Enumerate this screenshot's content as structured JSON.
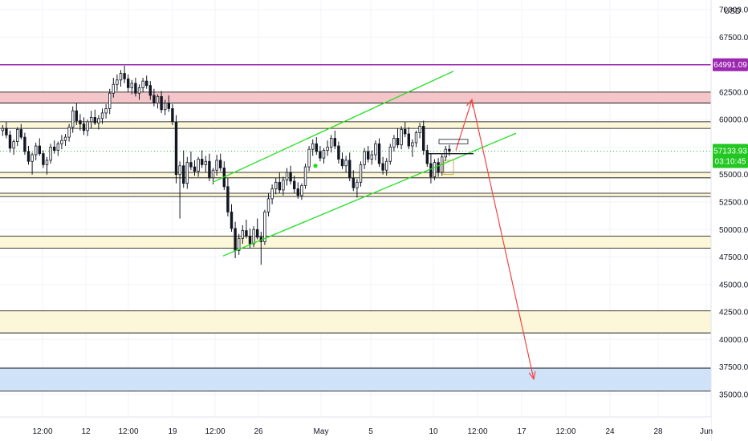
{
  "chart_data": {
    "type": "candlestick",
    "currency_label": "USD",
    "y_ticks": [
      35000,
      37500,
      40000,
      42500,
      45000,
      47500,
      50000,
      52500,
      55000,
      57500,
      60000,
      62500,
      65000,
      67500,
      70000
    ],
    "y_tick_labels": [
      "35000.00",
      "37500.00",
      "40000.00",
      "42500.00",
      "45000.00",
      "47500.00",
      "50000.00",
      "52500.00",
      "55000.00",
      "57500.00",
      "60000.00",
      "62500.00",
      "65000.00",
      "67500.00",
      "70000.00"
    ],
    "ylim": [
      33500,
      71000
    ],
    "x_tick_labels": [
      {
        "label": "12:00",
        "pos": 53
      },
      {
        "label": "12",
        "pos": 107
      },
      {
        "label": "12:00",
        "pos": 160
      },
      {
        "label": "19",
        "pos": 215
      },
      {
        "label": "12:00",
        "pos": 268
      },
      {
        "label": "26",
        "pos": 322
      },
      {
        "label": "May",
        "pos": 400
      },
      {
        "label": "5",
        "pos": 462
      },
      {
        "label": "10",
        "pos": 540
      },
      {
        "label": "12:00",
        "pos": 595
      },
      {
        "label": "17",
        "pos": 650
      },
      {
        "label": "12:00",
        "pos": 705
      },
      {
        "label": "24",
        "pos": 760
      },
      {
        "label": "28",
        "pos": 820
      },
      {
        "label": "Jun",
        "pos": 880
      }
    ],
    "resistance_line": {
      "value": 64991.09,
      "label": "64991.09",
      "color": "#9c27b0"
    },
    "current_price": {
      "value": 57133.93,
      "label": "57133.93",
      "countdown": "03:10:45",
      "color": "#22c722"
    },
    "zones": [
      {
        "from": 61500,
        "to": 62500,
        "fill": "#f5c6c9",
        "border": "#000000"
      },
      {
        "from": 59200,
        "to": 59800,
        "fill": "#fbf7d8",
        "border": "#000000"
      },
      {
        "from": 54700,
        "to": 55200,
        "fill": "#fbf7d8",
        "border": "#000000"
      },
      {
        "from": 53000,
        "to": 53300,
        "fill": "#fbf7d8",
        "border": "#000000"
      },
      {
        "from": 48300,
        "to": 49400,
        "fill": "#fbf7d8",
        "border": "#000000"
      },
      {
        "from": 40600,
        "to": 42600,
        "fill": "#fbf7d8",
        "border": "#000000"
      },
      {
        "from": 35300,
        "to": 37400,
        "fill": "#cfe2f7",
        "border": "#000000"
      }
    ],
    "channel": {
      "color": "#22dd22",
      "upper": [
        [
          265,
          54300
        ],
        [
          565,
          64400
        ]
      ],
      "lower": [
        [
          278,
          47600
        ],
        [
          643,
          58750
        ]
      ]
    },
    "projection": {
      "color": "#f04545",
      "points": [
        [
          568,
          57200
        ],
        [
          588,
          61800
        ],
        [
          665,
          36400
        ]
      ]
    },
    "candles": [
      [
        59000,
        59500,
        58500,
        59200
      ],
      [
        59200,
        59800,
        58300,
        58600
      ],
      [
        58600,
        59000,
        57000,
        57400
      ],
      [
        57400,
        58200,
        56800,
        58000
      ],
      [
        58000,
        59300,
        57600,
        59100
      ],
      [
        59100,
        59600,
        58200,
        58400
      ],
      [
        58400,
        58800,
        56800,
        57100
      ],
      [
        57100,
        57600,
        55900,
        56200
      ],
      [
        56200,
        57000,
        55000,
        56800
      ],
      [
        56800,
        57900,
        56300,
        57600
      ],
      [
        57600,
        58300,
        56700,
        56900
      ],
      [
        56900,
        57200,
        55600,
        55900
      ],
      [
        55900,
        56600,
        55000,
        56300
      ],
      [
        56300,
        57800,
        56000,
        57500
      ],
      [
        57500,
        58100,
        56900,
        57200
      ],
      [
        57200,
        58000,
        56700,
        57800
      ],
      [
        57800,
        58600,
        57300,
        58100
      ],
      [
        58100,
        58700,
        57600,
        58400
      ],
      [
        58400,
        59600,
        58000,
        59300
      ],
      [
        59300,
        61200,
        58800,
        60800
      ],
      [
        60800,
        61500,
        59500,
        59900
      ],
      [
        59900,
        60500,
        59000,
        59600
      ],
      [
        59600,
        60200,
        58600,
        59000
      ],
      [
        59000,
        60000,
        58500,
        59800
      ],
      [
        59800,
        60800,
        59200,
        60200
      ],
      [
        60200,
        60900,
        59500,
        59700
      ],
      [
        59700,
        60400,
        59100,
        60100
      ],
      [
        60100,
        61000,
        59600,
        60600
      ],
      [
        60600,
        61400,
        60100,
        61000
      ],
      [
        61000,
        62800,
        60500,
        62400
      ],
      [
        62400,
        63800,
        62000,
        63200
      ],
      [
        63200,
        64100,
        62600,
        63600
      ],
      [
        63600,
        64500,
        63000,
        64200
      ],
      [
        64200,
        64900,
        63300,
        63700
      ],
      [
        63700,
        64100,
        62500,
        62900
      ],
      [
        62900,
        63600,
        62300,
        63300
      ],
      [
        63300,
        63800,
        62100,
        62400
      ],
      [
        62400,
        63200,
        61800,
        62900
      ],
      [
        62900,
        63800,
        62500,
        63500
      ],
      [
        63500,
        64000,
        62800,
        63100
      ],
      [
        63100,
        63500,
        61800,
        62200
      ],
      [
        62200,
        62800,
        61200,
        61500
      ],
      [
        61500,
        62300,
        61000,
        62100
      ],
      [
        62100,
        62600,
        60600,
        60900
      ],
      [
        60900,
        61800,
        60400,
        61500
      ],
      [
        61500,
        62200,
        60700,
        61000
      ],
      [
        61000,
        61400,
        59500,
        59800
      ],
      [
        59800,
        60400,
        54200,
        55000
      ],
      [
        55000,
        56200,
        51000,
        55800
      ],
      [
        55800,
        57200,
        53800,
        54200
      ],
      [
        54200,
        56600,
        53700,
        56100
      ],
      [
        56100,
        57100,
        55400,
        55700
      ],
      [
        55700,
        56300,
        54900,
        55300
      ],
      [
        55300,
        56600,
        54800,
        56400
      ],
      [
        56400,
        57200,
        55600,
        55900
      ],
      [
        55900,
        56700,
        55200,
        56200
      ],
      [
        56200,
        56900,
        54400,
        54700
      ],
      [
        54700,
        55600,
        54100,
        55400
      ],
      [
        55400,
        56800,
        54900,
        56300
      ],
      [
        56300,
        56900,
        55300,
        55600
      ],
      [
        55600,
        56200,
        53600,
        53900
      ],
      [
        53900,
        54700,
        51200,
        51600
      ],
      [
        51600,
        52300,
        49800,
        50100
      ],
      [
        50100,
        50700,
        47400,
        48100
      ],
      [
        48100,
        49600,
        47700,
        49200
      ],
      [
        49200,
        50400,
        48700,
        49900
      ],
      [
        49900,
        50900,
        49200,
        49400
      ],
      [
        49400,
        50100,
        48300,
        48700
      ],
      [
        48700,
        50300,
        48400,
        50000
      ],
      [
        50000,
        51000,
        49100,
        49300
      ],
      [
        49300,
        49800,
        46800,
        48900
      ],
      [
        48900,
        51800,
        48600,
        51600
      ],
      [
        51600,
        53300,
        51200,
        52800
      ],
      [
        52800,
        54100,
        52300,
        53700
      ],
      [
        53700,
        54700,
        53200,
        54300
      ],
      [
        54300,
        55200,
        53300,
        53600
      ],
      [
        53600,
        54800,
        53100,
        54500
      ],
      [
        54500,
        55600,
        54000,
        55200
      ],
      [
        55200,
        55800,
        54100,
        54400
      ],
      [
        54400,
        54900,
        53300,
        53700
      ],
      [
        53700,
        54300,
        52800,
        53100
      ],
      [
        53100,
        54200,
        52700,
        54000
      ],
      [
        54000,
        56000,
        53700,
        55700
      ],
      [
        55700,
        57600,
        55300,
        57300
      ],
      [
        57300,
        58200,
        56700,
        57800
      ],
      [
        57800,
        58400,
        56800,
        57100
      ],
      [
        57100,
        57600,
        56200,
        56500
      ],
      [
        56500,
        57400,
        56000,
        57200
      ],
      [
        57200,
        58100,
        56700,
        57500
      ],
      [
        57500,
        58600,
        57000,
        58300
      ],
      [
        58300,
        59000,
        57300,
        57600
      ],
      [
        57600,
        58000,
        56000,
        56400
      ],
      [
        56400,
        57000,
        55500,
        55800
      ],
      [
        55800,
        56700,
        55200,
        56300
      ],
      [
        56300,
        57000,
        54400,
        54700
      ],
      [
        54700,
        55400,
        53500,
        53800
      ],
      [
        53800,
        54600,
        52900,
        54300
      ],
      [
        54300,
        56200,
        53900,
        55900
      ],
      [
        55900,
        57400,
        55500,
        57100
      ],
      [
        57100,
        57600,
        56100,
        56400
      ],
      [
        56400,
        57200,
        55900,
        56800
      ],
      [
        56800,
        58100,
        56300,
        57800
      ],
      [
        57800,
        58300,
        55700,
        56000
      ],
      [
        56000,
        56600,
        55000,
        55400
      ],
      [
        55400,
        56500,
        54900,
        56200
      ],
      [
        56200,
        57800,
        55900,
        57500
      ],
      [
        57500,
        58600,
        57100,
        58300
      ],
      [
        58300,
        59200,
        57400,
        57700
      ],
      [
        57700,
        59400,
        57300,
        59100
      ],
      [
        59100,
        59800,
        58400,
        58700
      ],
      [
        58700,
        59300,
        57300,
        57600
      ],
      [
        57600,
        58200,
        56600,
        57900
      ],
      [
        57900,
        59000,
        57500,
        58800
      ],
      [
        58800,
        59700,
        58300,
        59400
      ],
      [
        59400,
        59900,
        56800,
        57200
      ],
      [
        57200,
        57700,
        55700,
        56000
      ],
      [
        56000,
        56900,
        54200,
        54800
      ],
      [
        54800,
        56400,
        54500,
        56100
      ],
      [
        56100,
        56500,
        54800,
        55200
      ],
      [
        55200,
        56900,
        54900,
        56600
      ],
      [
        56600,
        57600,
        56200,
        57300
      ],
      [
        57300,
        57700,
        56700,
        57133.93
      ]
    ]
  }
}
